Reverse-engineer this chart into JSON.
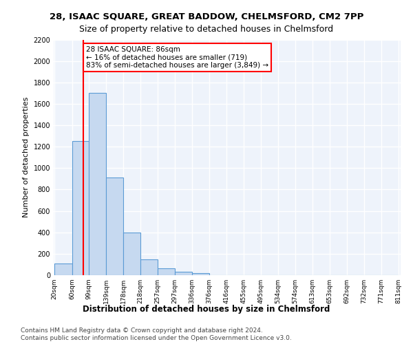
{
  "title1": "28, ISAAC SQUARE, GREAT BADDOW, CHELMSFORD, CM2 7PP",
  "title2": "Size of property relative to detached houses in Chelmsford",
  "xlabel": "Distribution of detached houses by size in Chelmsford",
  "ylabel": "Number of detached properties",
  "bar_values": [
    110,
    1250,
    1700,
    910,
    400,
    150,
    65,
    35,
    22,
    0,
    0,
    0,
    0,
    0,
    0,
    0,
    0,
    0,
    0,
    0
  ],
  "bin_labels": [
    "20sqm",
    "60sqm",
    "99sqm",
    "139sqm",
    "178sqm",
    "218sqm",
    "257sqm",
    "297sqm",
    "336sqm",
    "376sqm",
    "416sqm",
    "455sqm",
    "495sqm",
    "534sqm",
    "574sqm",
    "613sqm",
    "653sqm",
    "692sqm",
    "732sqm",
    "771sqm",
    "811sqm"
  ],
  "bar_color": "#c6d9f0",
  "bar_edge_color": "#5b9bd5",
  "vline_x": 86,
  "vline_color": "red",
  "annotation_text": "28 ISAAC SQUARE: 86sqm\n← 16% of detached houses are smaller (719)\n83% of semi-detached houses are larger (3,849) →",
  "annotation_box_color": "white",
  "annotation_box_edge": "red",
  "ylim": [
    0,
    2200
  ],
  "yticks": [
    0,
    200,
    400,
    600,
    800,
    1000,
    1200,
    1400,
    1600,
    1800,
    2000,
    2200
  ],
  "footer1": "Contains HM Land Registry data © Crown copyright and database right 2024.",
  "footer2": "Contains public sector information licensed under the Open Government Licence v3.0.",
  "bg_color": "#eef3fb",
  "grid_color": "#ffffff",
  "bin_edges": [
    20,
    60,
    99,
    139,
    178,
    218,
    257,
    297,
    336,
    376,
    416,
    455,
    495,
    534,
    574,
    613,
    653,
    692,
    732,
    771,
    811
  ]
}
